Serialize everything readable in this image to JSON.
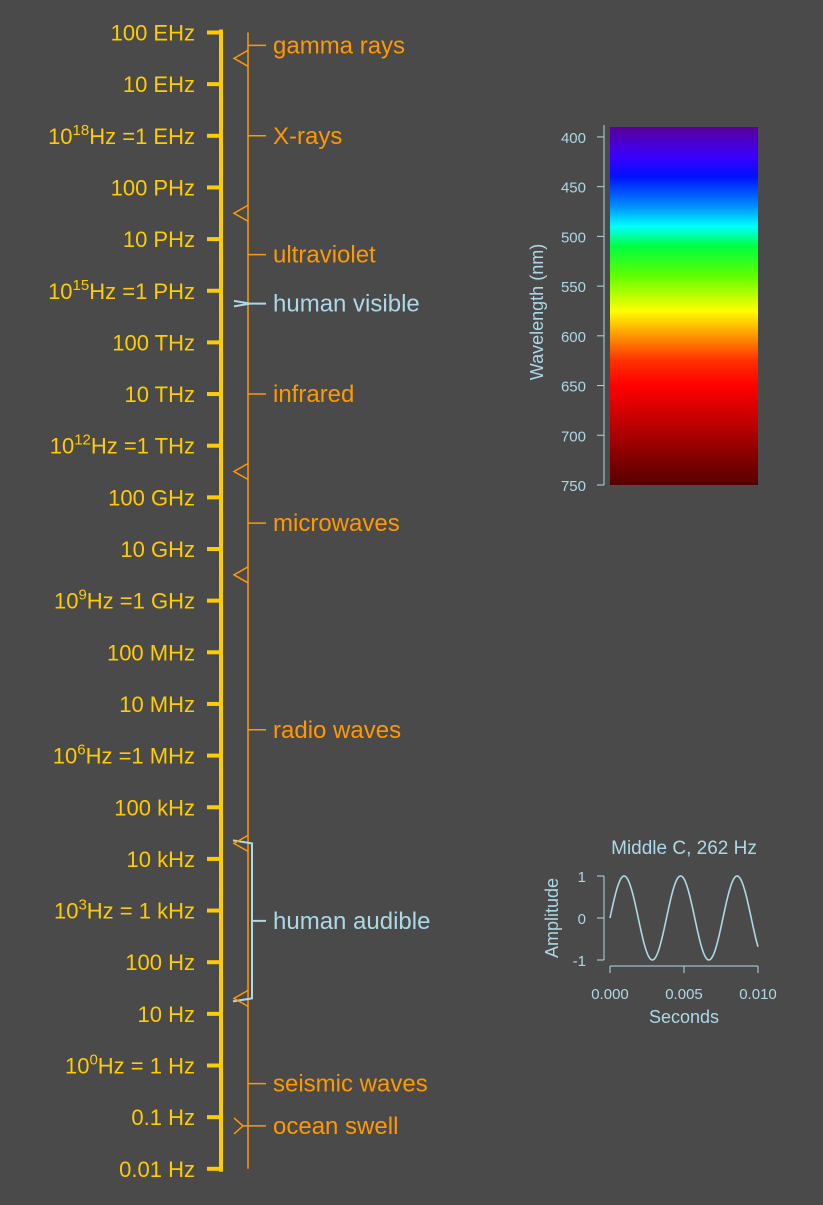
{
  "colors": {
    "background": "#4a4a4a",
    "frequency_axis": "#ffcc00",
    "band": "#ff9900",
    "highlight": "#add8e6"
  },
  "frequency_ticks": [
    {
      "base": "",
      "exp": "",
      "text": "100 EHz"
    },
    {
      "base": "",
      "exp": "",
      "text": "10 EHz"
    },
    {
      "base": "10",
      "exp": "18",
      "text": "Hz =1 EHz"
    },
    {
      "base": "",
      "exp": "",
      "text": "100 PHz"
    },
    {
      "base": "",
      "exp": "",
      "text": "10 PHz"
    },
    {
      "base": "10",
      "exp": "15",
      "text": "Hz =1 PHz"
    },
    {
      "base": "",
      "exp": "",
      "text": "100 THz"
    },
    {
      "base": "",
      "exp": "",
      "text": "10 THz"
    },
    {
      "base": "10",
      "exp": "12",
      "text": "Hz =1 THz"
    },
    {
      "base": "",
      "exp": "",
      "text": "100 GHz"
    },
    {
      "base": "",
      "exp": "",
      "text": "10 GHz"
    },
    {
      "base": "10",
      "exp": "9",
      "text": "Hz =1 GHz"
    },
    {
      "base": "",
      "exp": "",
      "text": "100 MHz"
    },
    {
      "base": "",
      "exp": "",
      "text": "10 MHz"
    },
    {
      "base": "10",
      "exp": "6",
      "text": "Hz =1 MHz"
    },
    {
      "base": "",
      "exp": "",
      "text": "100 kHz"
    },
    {
      "base": "",
      "exp": "",
      "text": "10 kHz"
    },
    {
      "base": "10",
      "exp": "3",
      "text": "Hz = 1 kHz"
    },
    {
      "base": "",
      "exp": "",
      "text": "100 Hz"
    },
    {
      "base": "",
      "exp": "",
      "text": "10 Hz"
    },
    {
      "base": "10",
      "exp": "0",
      "text": "Hz =   1 Hz"
    },
    {
      "base": "",
      "exp": "",
      "text": "0.1 Hz"
    },
    {
      "base": "",
      "exp": "",
      "text": "0.01 Hz"
    }
  ],
  "bands": [
    {
      "label": "gamma rays",
      "low_exp": 19.5,
      "high_exp": 20,
      "label_exp": 19.75,
      "highlight": false
    },
    {
      "label": "X-rays",
      "low_exp": 16.5,
      "high_exp": 19.5,
      "label_exp": 18,
      "highlight": false
    },
    {
      "label": "ultraviolet",
      "low_exp": 14.9,
      "high_exp": 16.5,
      "label_exp": 15.7,
      "highlight": false
    },
    {
      "label": "human visible",
      "low_exp": 14.6,
      "high_exp": 14.9,
      "label_exp": 14.75,
      "highlight": true
    },
    {
      "label": "infrared",
      "low_exp": 11.5,
      "high_exp": 14.6,
      "label_exp": 13,
      "highlight": false
    },
    {
      "label": "microwaves",
      "low_exp": 9.5,
      "high_exp": 11.5,
      "label_exp": 10.5,
      "highlight": false
    },
    {
      "label": "radio waves",
      "low_exp": -0.5,
      "high_exp": 9.5,
      "label_exp": 6.5,
      "highlight": false
    },
    {
      "label": "human audible",
      "low_exp": 1.3,
      "high_exp": 4.3,
      "label_exp": 2.8,
      "highlight": true
    },
    {
      "label": "seismic waves",
      "low_exp": -2,
      "high_exp": 1.2,
      "label_exp": -0.35,
      "highlight": false
    },
    {
      "label": "ocean swell",
      "low_exp": -1.2,
      "high_exp": -1,
      "label_exp": -1.17,
      "highlight": false
    }
  ],
  "chart_data": [
    {
      "type": "heatmap",
      "ylabel": "Wavelength (nm)",
      "yticks": [
        400,
        450,
        500,
        550,
        600,
        650,
        700,
        750
      ],
      "ylim": [
        390,
        750
      ],
      "colormap": "visible spectrum",
      "stops": [
        {
          "nm": 390,
          "color": "#5a0098"
        },
        {
          "nm": 420,
          "color": "#3a00ff"
        },
        {
          "nm": 440,
          "color": "#0010ff"
        },
        {
          "nm": 470,
          "color": "#0090ff"
        },
        {
          "nm": 490,
          "color": "#00ffff"
        },
        {
          "nm": 510,
          "color": "#00ff40"
        },
        {
          "nm": 540,
          "color": "#60ff00"
        },
        {
          "nm": 575,
          "color": "#ffff00"
        },
        {
          "nm": 595,
          "color": "#ffaa00"
        },
        {
          "nm": 625,
          "color": "#ff3000"
        },
        {
          "nm": 650,
          "color": "#ff0000"
        },
        {
          "nm": 700,
          "color": "#aa0000"
        },
        {
          "nm": 750,
          "color": "#550000"
        }
      ]
    },
    {
      "type": "line",
      "title": "Middle C, 262 Hz",
      "xlabel": "Seconds",
      "ylabel": "Amplitude",
      "frequency_hz": 262,
      "xlim": [
        0,
        0.01
      ],
      "ylim": [
        -1,
        1
      ],
      "xticks": [
        "0.000",
        "0.005",
        "0.010"
      ],
      "yticks": [
        "1",
        "0",
        "-1"
      ],
      "series": [
        {
          "function": "sin(2*pi*262*t)"
        }
      ]
    }
  ]
}
